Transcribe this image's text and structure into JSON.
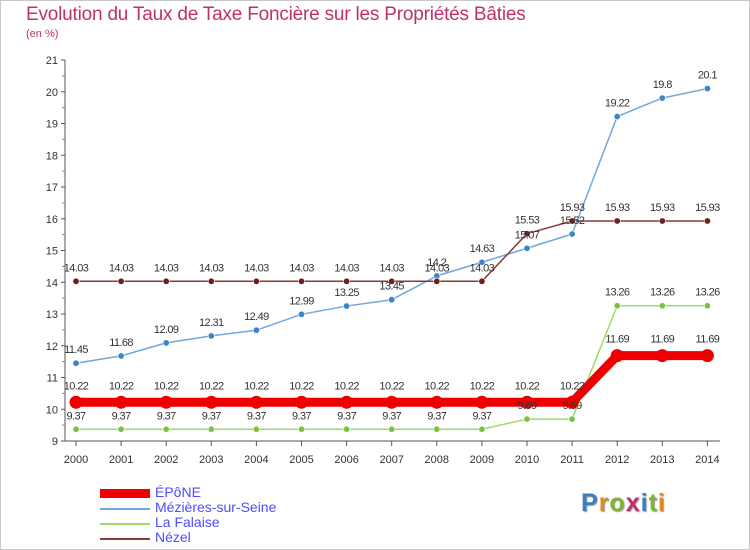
{
  "title": "Evolution du Taux de Taxe Foncière sur les Propriétés Bâties",
  "unit_label": "(en %)",
  "logo": {
    "text": "Proxiti",
    "colors": [
      "#3a7ec8",
      "#e08a1e",
      "#7cb82f",
      "#c0306a",
      "#3a7ec8",
      "#7cb82f",
      "#e08a1e"
    ]
  },
  "chart_data": {
    "type": "line",
    "title": "Evolution du Taux de Taxe Foncière sur les Propriétés Bâties",
    "ylabel": "(en %)",
    "xlabel": "",
    "ylim": [
      9,
      21
    ],
    "yticks": [
      9,
      10,
      11,
      12,
      13,
      14,
      15,
      16,
      17,
      18,
      19,
      20,
      21
    ],
    "grid": false,
    "legend_position": "bottom-left",
    "x": [
      2000,
      2001,
      2002,
      2003,
      2004,
      2005,
      2006,
      2007,
      2008,
      2009,
      2010,
      2011,
      2012,
      2013,
      2014
    ],
    "series": [
      {
        "name": "ÉPôNE",
        "color": "#ee0000",
        "marker": "#ee0000",
        "values": [
          10.22,
          10.22,
          10.22,
          10.22,
          10.22,
          10.22,
          10.22,
          10.22,
          10.22,
          10.22,
          10.22,
          10.22,
          11.69,
          11.69,
          11.69
        ],
        "labels": [
          "10.22",
          "10.22",
          "10.22",
          "10.22",
          "10.22",
          "10.22",
          "10.22",
          "10.22",
          "10.22",
          "10.22",
          "10.22",
          "10.22",
          "11.69",
          "11.69",
          "11.69"
        ]
      },
      {
        "name": "Mézières-sur-Seine",
        "color": "#6fa8dc",
        "marker": "#3d85c6",
        "values": [
          11.45,
          11.68,
          12.09,
          12.31,
          12.49,
          12.99,
          13.25,
          13.45,
          14.2,
          14.63,
          15.07,
          15.52,
          19.22,
          19.8,
          20.1
        ],
        "labels": [
          "11.45",
          "11.68",
          "12.09",
          "12.31",
          "12.49",
          "12.99",
          "13.25",
          "13.45",
          "14.2",
          "14.63",
          "15.07",
          "15.52",
          "19.22",
          "19.8",
          "20.1"
        ]
      },
      {
        "name": "La Falaise",
        "color": "#99dd66",
        "marker": "#7cc242",
        "values": [
          9.37,
          9.37,
          9.37,
          9.37,
          9.37,
          9.37,
          9.37,
          9.37,
          9.37,
          9.37,
          9.69,
          9.69,
          13.26,
          13.26,
          13.26
        ],
        "labels": [
          "9.37",
          "9.37",
          "9.37",
          "9.37",
          "9.37",
          "9.37",
          "9.37",
          "9.37",
          "9.37",
          "9.37",
          "9.69",
          "9.69",
          "13.26",
          "13.26",
          "13.26"
        ]
      },
      {
        "name": "Nézel",
        "color": "#8b3a3a",
        "marker": "#6b1f1f",
        "values": [
          14.03,
          14.03,
          14.03,
          14.03,
          14.03,
          14.03,
          14.03,
          14.03,
          14.03,
          14.03,
          15.53,
          15.93,
          15.93,
          15.93,
          15.93
        ],
        "labels": [
          "14.03",
          "14.03",
          "14.03",
          "14.03",
          "14.03",
          "14.03",
          "14.03",
          "14.03",
          "14.03",
          "14.03",
          "15.53",
          "15.93",
          "15.93",
          "15.93",
          "15.93"
        ]
      }
    ]
  }
}
